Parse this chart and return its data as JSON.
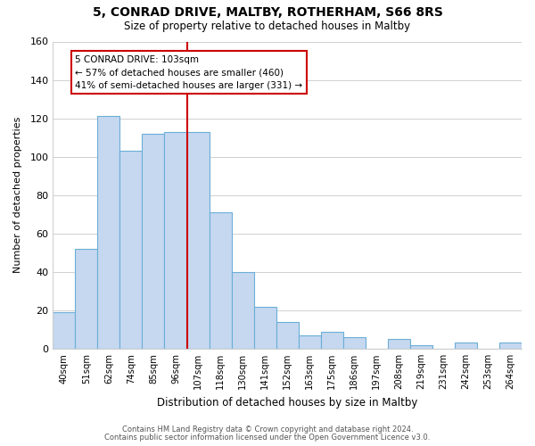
{
  "title1": "5, CONRAD DRIVE, MALTBY, ROTHERHAM, S66 8RS",
  "title2": "Size of property relative to detached houses in Maltby",
  "xlabel": "Distribution of detached houses by size in Maltby",
  "ylabel": "Number of detached properties",
  "footer1": "Contains HM Land Registry data © Crown copyright and database right 2024.",
  "footer2": "Contains public sector information licensed under the Open Government Licence v3.0.",
  "bar_labels": [
    "40sqm",
    "51sqm",
    "62sqm",
    "74sqm",
    "85sqm",
    "96sqm",
    "107sqm",
    "118sqm",
    "130sqm",
    "141sqm",
    "152sqm",
    "163sqm",
    "175sqm",
    "186sqm",
    "197sqm",
    "208sqm",
    "219sqm",
    "231sqm",
    "242sqm",
    "253sqm",
    "264sqm"
  ],
  "bar_values": [
    19,
    52,
    121,
    103,
    112,
    113,
    113,
    71,
    40,
    22,
    14,
    7,
    9,
    6,
    0,
    5,
    2,
    0,
    3,
    0,
    3
  ],
  "bar_color": "#c5d8f0",
  "bar_edge_color": "#6baed6",
  "vline_x_idx": 6,
  "vline_color": "#cc0000",
  "annotation_line1": "5 CONRAD DRIVE: 103sqm",
  "annotation_line2": "← 57% of detached houses are smaller (460)",
  "annotation_line3": "41% of semi-detached houses are larger (331) →",
  "annotation_box_color": "#cc0000",
  "ylim": [
    0,
    160
  ],
  "yticks": [
    0,
    20,
    40,
    60,
    80,
    100,
    120,
    140,
    160
  ],
  "background_color": "#ffffff",
  "grid_color": "#d0d0d0"
}
